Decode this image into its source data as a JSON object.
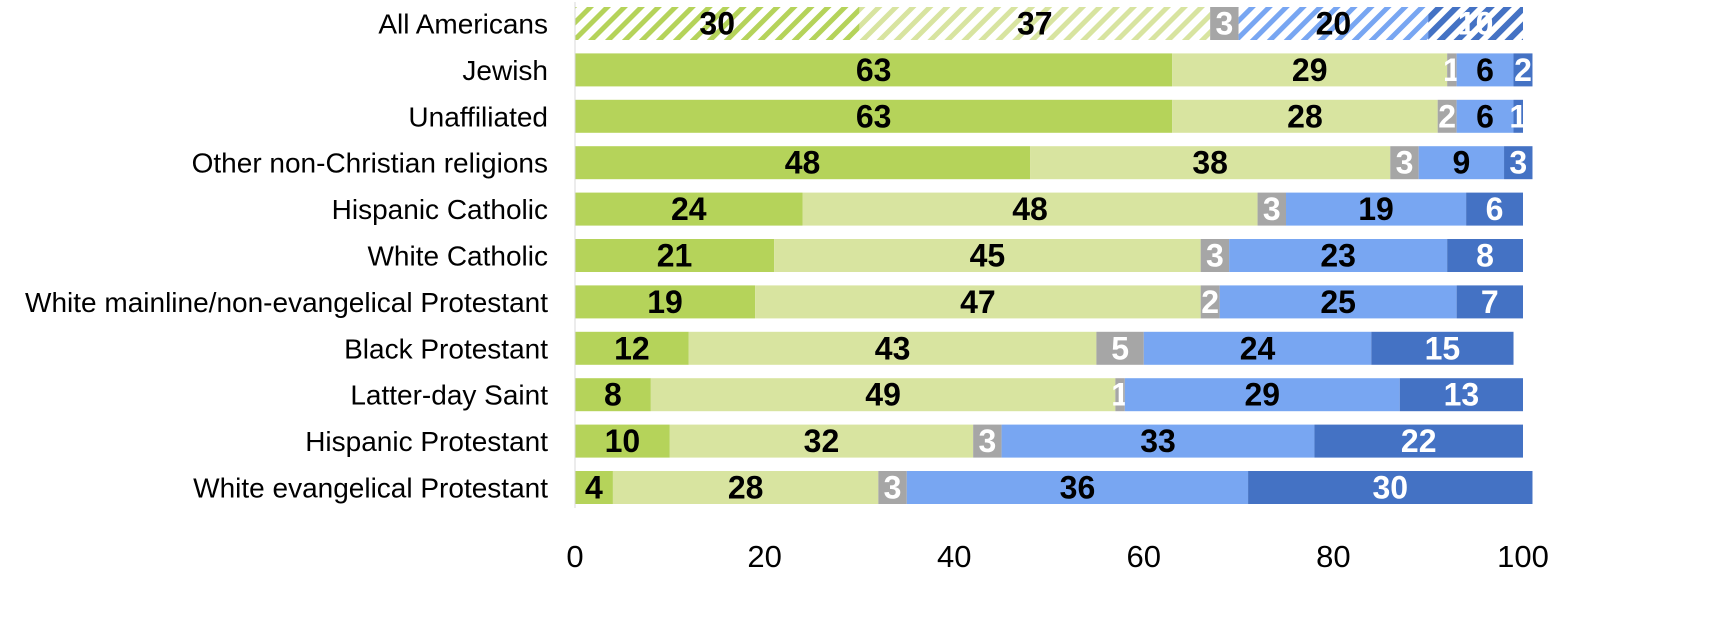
{
  "chart_data": {
    "type": "bar",
    "orientation": "horizontal",
    "stacked": true,
    "title": "",
    "xlabel": "",
    "ylabel": "",
    "xlim": [
      0,
      100
    ],
    "xticks": [
      "0",
      "20",
      "40",
      "60",
      "80",
      "100"
    ],
    "grid": false,
    "legend": "none",
    "categories": [
      "All Americans",
      "Jewish",
      "Unaffiliated",
      "Other non-Christian religions",
      "Hispanic Catholic ",
      "White Catholic",
      "White mainline/non-evangelical Protestant",
      "Black Protestant",
      "Latter-day Saint",
      "Hispanic Protestant",
      "White evangelical Protestant"
    ],
    "hatched_category": "All Americans",
    "series": [
      {
        "color": "#b5d35a",
        "label_color": "#000000",
        "values": [
          30,
          63,
          63,
          48,
          24,
          21,
          19,
          12,
          8,
          10,
          4
        ]
      },
      {
        "color": "#d8e4a0",
        "label_color": "#000000",
        "values": [
          37,
          29,
          28,
          38,
          48,
          45,
          47,
          43,
          49,
          32,
          28
        ]
      },
      {
        "color": "#a6a6a6",
        "label_color": "#ffffff",
        "values": [
          3,
          1,
          2,
          3,
          3,
          3,
          2,
          5,
          1,
          3,
          3
        ]
      },
      {
        "color": "#78a6f2",
        "label_color": "#000000",
        "values": [
          20,
          6,
          6,
          9,
          19,
          23,
          25,
          24,
          29,
          33,
          36
        ]
      },
      {
        "color": "#4472c4",
        "label_color": "#ffffff",
        "values": [
          10,
          2,
          1,
          3,
          6,
          8,
          7,
          15,
          13,
          22,
          30
        ]
      }
    ]
  }
}
